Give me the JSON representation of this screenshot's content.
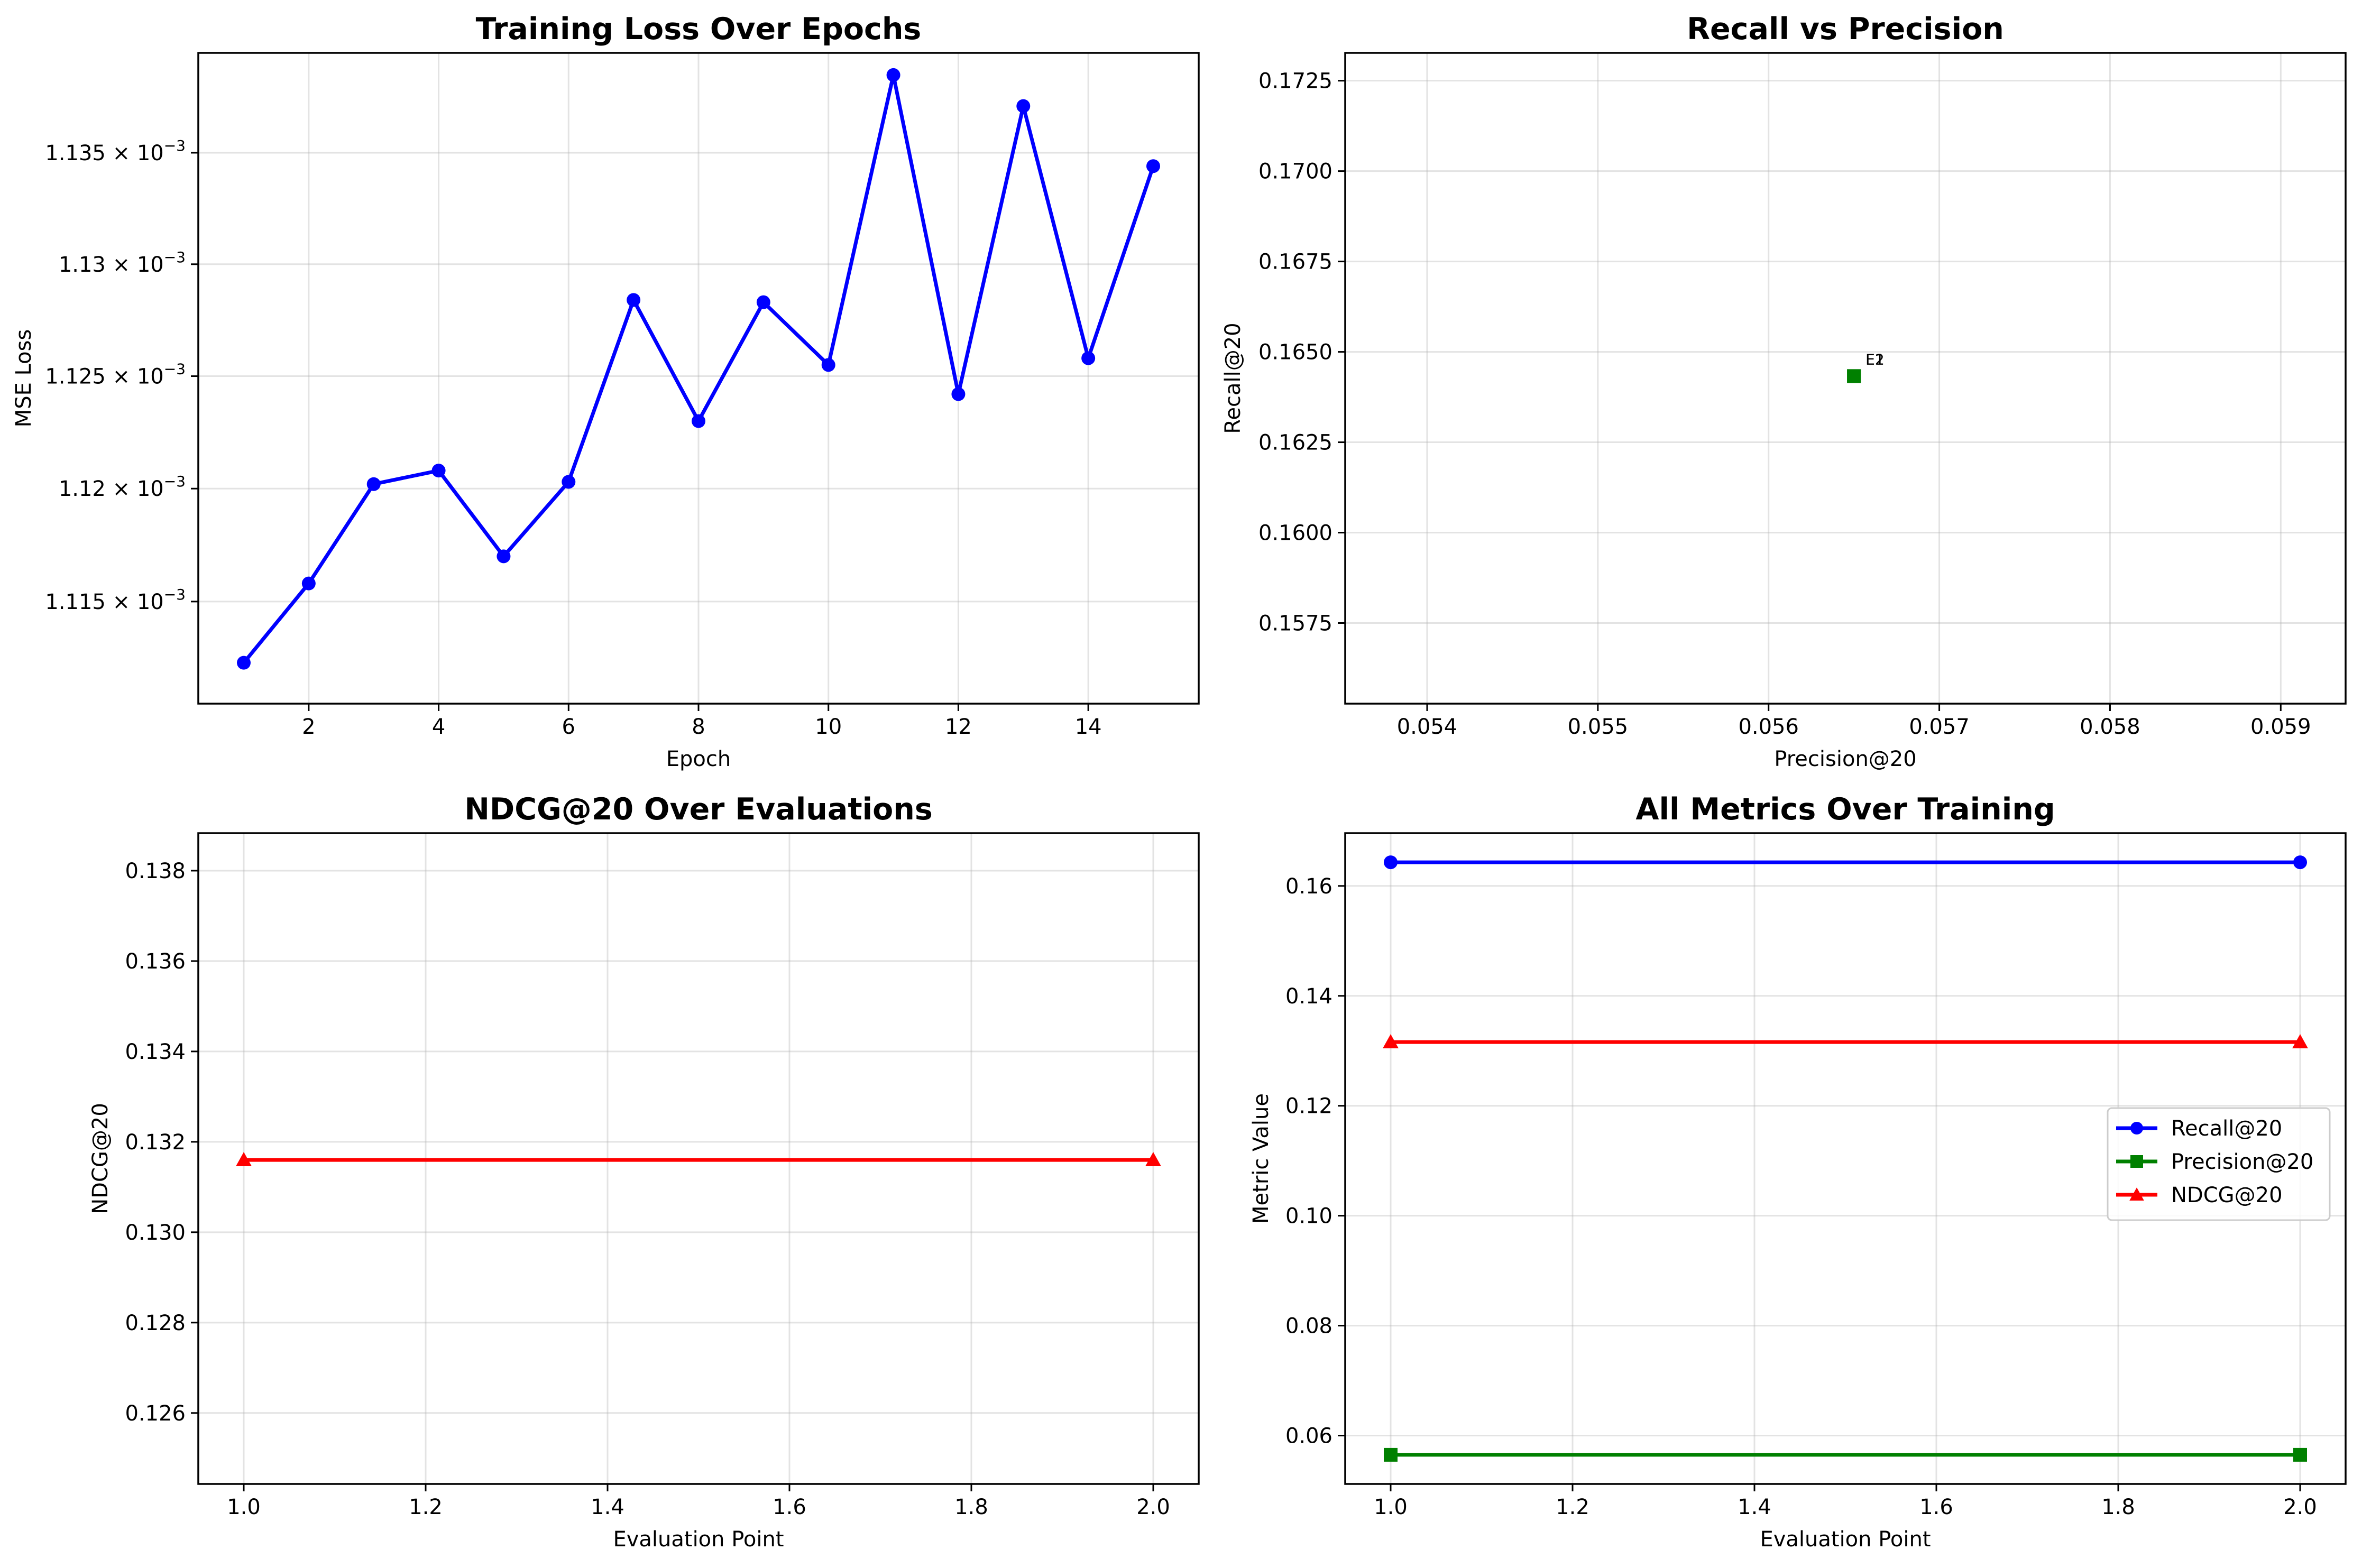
{
  "chart_data": [
    {
      "type": "line",
      "title": "Training Loss Over Epochs",
      "xlabel": "Epoch",
      "ylabel": "MSE Loss",
      "yscale": "log",
      "xlim": [
        0.3,
        15.7
      ],
      "ylim": [
        0.0011105,
        0.0011395
      ],
      "grid": true,
      "xticks": [
        2,
        4,
        6,
        8,
        10,
        12,
        14
      ],
      "yticks": [
        0.001115,
        0.00112,
        0.001125,
        0.00113,
        0.001135
      ],
      "ytick_labels": [
        {
          "mantissa": "1.115",
          "exponent": "−3"
        },
        {
          "mantissa": "1.12",
          "exponent": "−3"
        },
        {
          "mantissa": "1.125",
          "exponent": "−3"
        },
        {
          "mantissa": "1.13",
          "exponent": "−3"
        },
        {
          "mantissa": "1.135",
          "exponent": "−3"
        }
      ],
      "series": [
        {
          "color": "#0000ff",
          "marker": "circle",
          "x": [
            1,
            2,
            3,
            4,
            5,
            6,
            7,
            8,
            9,
            10,
            11,
            12,
            13,
            14,
            15
          ],
          "y": [
            0.0011123,
            0.0011158,
            0.0011202,
            0.0011208,
            0.001117,
            0.0011203,
            0.0011284,
            0.001123,
            0.0011283,
            0.0011255,
            0.0011385,
            0.0011242,
            0.0011371,
            0.0011258,
            0.0011344
          ]
        }
      ]
    },
    {
      "type": "scatter",
      "title": "Recall vs Precision",
      "xlabel": "Precision@20",
      "ylabel": "Recall@20",
      "xlim": [
        0.05352,
        0.05938
      ],
      "ylim": [
        0.15527,
        0.17327
      ],
      "grid": true,
      "xticks": [
        0.054,
        0.055,
        0.056,
        0.057,
        0.058,
        0.059
      ],
      "yticks": [
        0.1575,
        0.16,
        0.1625,
        0.165,
        0.1675,
        0.17,
        0.1725
      ],
      "series": [
        {
          "color": "#008000",
          "marker": "square",
          "x": [
            0.0565,
            0.0565
          ],
          "y": [
            0.16433,
            0.16433
          ],
          "labels": [
            "E1",
            "E2"
          ]
        }
      ]
    },
    {
      "type": "line",
      "title": "NDCG@20 Over Evaluations",
      "xlabel": "Evaluation Point",
      "ylabel": "NDCG@20",
      "xlim": [
        0.95,
        2.05
      ],
      "ylim": [
        0.12443,
        0.13883
      ],
      "grid": true,
      "xticks": [
        1.0,
        1.2,
        1.4,
        1.6,
        1.8,
        2.0
      ],
      "yticks": [
        0.126,
        0.128,
        0.13,
        0.132,
        0.134,
        0.136,
        0.138
      ],
      "series": [
        {
          "color": "#ff0000",
          "marker": "triangle",
          "x": [
            1.0,
            2.0
          ],
          "y": [
            0.1316,
            0.1316
          ]
        }
      ]
    },
    {
      "type": "line",
      "title": "All Metrics Over Training",
      "xlabel": "Evaluation Point",
      "ylabel": "Metric Value",
      "xlim": [
        0.95,
        2.05
      ],
      "ylim": [
        0.0512,
        0.1696
      ],
      "grid": true,
      "legend": "center-right",
      "xticks": [
        1.0,
        1.2,
        1.4,
        1.6,
        1.8,
        2.0
      ],
      "yticks": [
        0.06,
        0.08,
        0.1,
        0.12,
        0.14,
        0.16
      ],
      "series": [
        {
          "name": "Recall@20",
          "color": "#0000ff",
          "marker": "circle",
          "x": [
            1.0,
            2.0
          ],
          "y": [
            0.1643,
            0.1643
          ]
        },
        {
          "name": "Precision@20",
          "color": "#008000",
          "marker": "square",
          "x": [
            1.0,
            2.0
          ],
          "y": [
            0.0565,
            0.0565
          ]
        },
        {
          "name": "NDCG@20",
          "color": "#ff0000",
          "marker": "triangle",
          "x": [
            1.0,
            2.0
          ],
          "y": [
            0.1316,
            0.1316
          ]
        }
      ]
    }
  ]
}
